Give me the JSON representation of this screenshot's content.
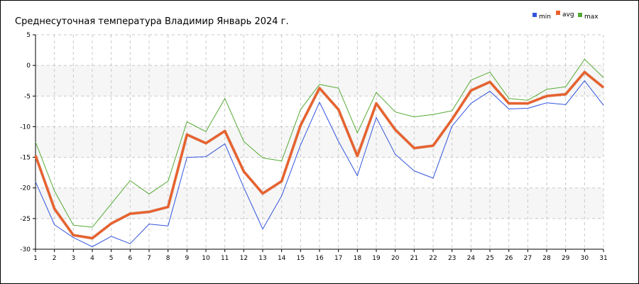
{
  "chart_data": {
    "type": "line",
    "title": "Среднесуточная температура Владимир  Январь 2024 г.",
    "xlabel": "",
    "ylabel": "",
    "x": [
      1,
      2,
      3,
      4,
      5,
      6,
      7,
      8,
      9,
      10,
      11,
      12,
      13,
      14,
      15,
      16,
      17,
      18,
      19,
      20,
      21,
      22,
      23,
      24,
      25,
      26,
      27,
      28,
      29,
      30,
      31
    ],
    "ylim": [
      -30,
      5
    ],
    "yticks": [
      5,
      0,
      -5,
      -10,
      -15,
      -20,
      -25,
      -30
    ],
    "grid": true,
    "legend_position": "top-right",
    "series": [
      {
        "name": "min",
        "color": "#3355dd",
        "values": [
          -19.0,
          -26.0,
          -28.1,
          -29.6,
          -27.9,
          -29.1,
          -25.9,
          -26.2,
          -15.0,
          -14.9,
          -12.8,
          -19.9,
          -26.7,
          -21.3,
          -13.0,
          -6.0,
          -12.4,
          -18.0,
          -8.5,
          -14.5,
          -17.2,
          -18.4,
          -9.9,
          -6.2,
          -4.2,
          -7.1,
          -7.0,
          -6.1,
          -6.4,
          -2.5,
          -6.5
        ]
      },
      {
        "name": "avg",
        "color": "#e8602c",
        "values": [
          -14.7,
          -23.4,
          -27.7,
          -28.2,
          -25.8,
          -24.2,
          -23.9,
          -23.1,
          -11.3,
          -12.7,
          -10.7,
          -17.3,
          -20.9,
          -18.9,
          -9.8,
          -3.7,
          -7.2,
          -14.8,
          -6.2,
          -10.5,
          -13.5,
          -13.1,
          -8.8,
          -4.1,
          -2.7,
          -6.2,
          -6.2,
          -5.0,
          -4.7,
          -1.1,
          -3.6
        ]
      },
      {
        "name": "max",
        "color": "#55aa33",
        "values": [
          -12.5,
          -20.5,
          -26.1,
          -26.4,
          -22.6,
          -18.8,
          -21.0,
          -18.9,
          -9.2,
          -10.8,
          -5.4,
          -12.4,
          -15.1,
          -15.6,
          -7.2,
          -3.1,
          -3.7,
          -11.0,
          -4.4,
          -7.6,
          -8.4,
          -8.0,
          -7.4,
          -2.4,
          -1.1,
          -5.4,
          -5.7,
          -3.9,
          -3.5,
          1.0,
          -2.0
        ]
      }
    ]
  }
}
